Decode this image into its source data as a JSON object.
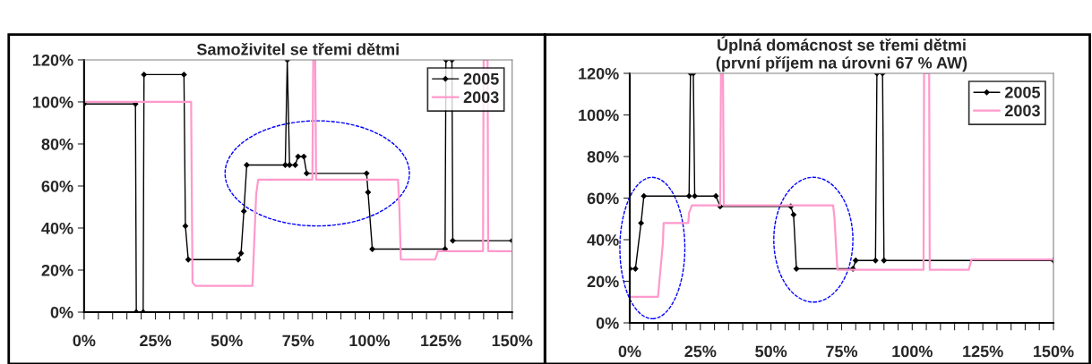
{
  "chart_data": [
    {
      "type": "line",
      "title": "Samoživitel se třemi dětmi",
      "legend": "top right",
      "grid": false,
      "xlim": [
        0,
        150
      ],
      "ylim": [
        0,
        120
      ],
      "xticks": [
        {
          "value": 0,
          "label": "0%"
        },
        {
          "value": 5,
          "label": null
        },
        {
          "value": 10,
          "label": null
        },
        {
          "value": 15,
          "label": null
        },
        {
          "value": 20,
          "label": null
        },
        {
          "value": 25,
          "label": "25%"
        },
        {
          "value": 30,
          "label": null
        },
        {
          "value": 35,
          "label": null
        },
        {
          "value": 40,
          "label": null
        },
        {
          "value": 45,
          "label": null
        },
        {
          "value": 50,
          "label": "50%"
        },
        {
          "value": 55,
          "label": null
        },
        {
          "value": 60,
          "label": null
        },
        {
          "value": 65,
          "label": null
        },
        {
          "value": 70,
          "label": null
        },
        {
          "value": 75,
          "label": "75%"
        },
        {
          "value": 80,
          "label": null
        },
        {
          "value": 85,
          "label": null
        },
        {
          "value": 90,
          "label": null
        },
        {
          "value": 95,
          "label": null
        },
        {
          "value": 100,
          "label": "100%"
        },
        {
          "value": 105,
          "label": null
        },
        {
          "value": 110,
          "label": null
        },
        {
          "value": 115,
          "label": null
        },
        {
          "value": 120,
          "label": null
        },
        {
          "value": 125,
          "label": "125%"
        },
        {
          "value": 130,
          "label": null
        },
        {
          "value": 135,
          "label": null
        },
        {
          "value": 140,
          "label": null
        },
        {
          "value": 145,
          "label": null
        },
        {
          "value": 150,
          "label": "150%"
        }
      ],
      "yticks": [
        {
          "value": 0,
          "label": "0%"
        },
        {
          "value": 20,
          "label": "20%"
        },
        {
          "value": 40,
          "label": "40%"
        },
        {
          "value": 60,
          "label": "60%"
        },
        {
          "value": 80,
          "label": "80%"
        },
        {
          "value": 100,
          "label": "100%"
        },
        {
          "value": 120,
          "label": "120%"
        }
      ],
      "series": [
        {
          "name": "2005",
          "color": "#000000",
          "marker": "diamond",
          "x": [
            0,
            18,
            18.3,
            20.7,
            21,
            35,
            35.5,
            36.5,
            54,
            55,
            56,
            57,
            70.5,
            71.2,
            72,
            74,
            75,
            77,
            78,
            99,
            99.5,
            101,
            126.5,
            126.8,
            128.9,
            129.2,
            150
          ],
          "values": [
            99,
            99,
            0,
            0,
            113,
            113,
            41,
            25,
            25,
            28,
            48,
            70,
            70,
            120,
            70,
            70,
            74,
            74,
            66,
            66,
            57,
            30,
            30,
            120,
            120,
            34,
            34
          ]
        },
        {
          "name": "2003",
          "color": "#ff99cc",
          "marker": "none",
          "x": [
            0,
            37.5,
            38,
            39,
            59,
            60.3,
            61,
            80,
            80.3,
            81,
            81.3,
            110,
            110.5,
            111,
            123,
            124,
            139.8,
            140,
            141.4,
            141.6,
            150
          ],
          "values": [
            100,
            100,
            14,
            12.5,
            12.5,
            56,
            63,
            63,
            120,
            120,
            63,
            63,
            49,
            25,
            25,
            29,
            29,
            120,
            120,
            29,
            29
          ]
        }
      ]
    },
    {
      "type": "line",
      "title": "Úplná domácnost se třemi dětmi\n(první příjem na úrovni 67 % AW)",
      "legend": "top right",
      "grid": false,
      "xlim": [
        0,
        150
      ],
      "ylim": [
        0,
        120
      ],
      "xticks": [
        {
          "value": 0,
          "label": "0%"
        },
        {
          "value": 5,
          "label": null
        },
        {
          "value": 10,
          "label": null
        },
        {
          "value": 15,
          "label": null
        },
        {
          "value": 20,
          "label": null
        },
        {
          "value": 25,
          "label": "25%"
        },
        {
          "value": 30,
          "label": null
        },
        {
          "value": 35,
          "label": null
        },
        {
          "value": 40,
          "label": null
        },
        {
          "value": 45,
          "label": null
        },
        {
          "value": 50,
          "label": "50%"
        },
        {
          "value": 55,
          "label": null
        },
        {
          "value": 60,
          "label": null
        },
        {
          "value": 65,
          "label": null
        },
        {
          "value": 70,
          "label": null
        },
        {
          "value": 75,
          "label": "75%"
        },
        {
          "value": 80,
          "label": null
        },
        {
          "value": 85,
          "label": null
        },
        {
          "value": 90,
          "label": null
        },
        {
          "value": 95,
          "label": null
        },
        {
          "value": 100,
          "label": "100%"
        },
        {
          "value": 105,
          "label": null
        },
        {
          "value": 110,
          "label": null
        },
        {
          "value": 115,
          "label": null
        },
        {
          "value": 120,
          "label": null
        },
        {
          "value": 125,
          "label": "125%"
        },
        {
          "value": 130,
          "label": null
        },
        {
          "value": 135,
          "label": null
        },
        {
          "value": 140,
          "label": null
        },
        {
          "value": 145,
          "label": null
        },
        {
          "value": 150,
          "label": "150%"
        }
      ],
      "yticks": [
        {
          "value": 0,
          "label": "0%"
        },
        {
          "value": 20,
          "label": "20%"
        },
        {
          "value": 40,
          "label": "40%"
        },
        {
          "value": 60,
          "label": "60%"
        },
        {
          "value": 80,
          "label": "80%"
        },
        {
          "value": 100,
          "label": "100%"
        },
        {
          "value": 120,
          "label": "120%"
        }
      ],
      "series": [
        {
          "name": "2005",
          "color": "#000000",
          "marker": "diamond",
          "x": [
            0,
            2,
            4,
            5,
            21,
            21.5,
            22.5,
            23,
            30.5,
            32,
            57,
            58,
            59,
            79,
            80,
            87,
            87.5,
            89.5,
            90,
            150
          ],
          "values": [
            26,
            26,
            48,
            61,
            61,
            120,
            120,
            61,
            61,
            56,
            56,
            52,
            26,
            26,
            30,
            30,
            120,
            120,
            30,
            30
          ]
        },
        {
          "name": "2003",
          "color": "#ff99cc",
          "marker": "none",
          "x": [
            0,
            10,
            11.7,
            12,
            20.7,
            21,
            22,
            32,
            32.3,
            33,
            33.3,
            72,
            72.5,
            73.5,
            104,
            104.2,
            106,
            106.2,
            120,
            121,
            150
          ],
          "values": [
            12.5,
            12.5,
            38,
            48,
            48,
            53,
            56.5,
            56.5,
            120,
            120,
            56.5,
            56.5,
            50,
            25.5,
            25.5,
            120,
            120,
            25.5,
            25.5,
            30.5,
            30.5
          ]
        }
      ]
    }
  ]
}
